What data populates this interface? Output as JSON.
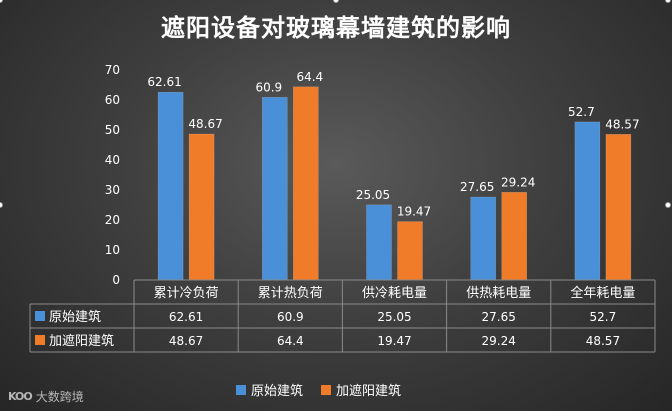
{
  "colors": {
    "series_1": "#4a90d9",
    "series_2": "#f07c2a",
    "grid": "#8a8a8a",
    "table_border": "#8a8a8a"
  },
  "watermark": {
    "text": "大数跨境",
    "logo_text": "KOO"
  },
  "chart_data": {
    "type": "bar",
    "title": "遮阳设备对玻璃幕墙建筑的影响",
    "categories": [
      "累计冷负荷",
      "累计热负荷",
      "供冷耗电量",
      "供热耗电量",
      "全年耗电量"
    ],
    "series": [
      {
        "name": "原始建筑",
        "values": [
          62.61,
          60.9,
          25.05,
          27.65,
          52.7
        ]
      },
      {
        "name": "加遮阳建筑",
        "values": [
          48.67,
          64.4,
          19.47,
          29.24,
          48.57
        ]
      }
    ],
    "data_labels": [
      [
        "62.61",
        "60.9",
        "25.05",
        "27.65",
        "52.7"
      ],
      [
        "48.67",
        "64.4",
        "19.47",
        "29.24",
        "48.57"
      ]
    ],
    "ylim": [
      0,
      70
    ],
    "yticks": [
      "0",
      "10",
      "20",
      "30",
      "40",
      "50",
      "60",
      "70"
    ],
    "grid": false,
    "data_table": true,
    "legend": "bottom"
  }
}
